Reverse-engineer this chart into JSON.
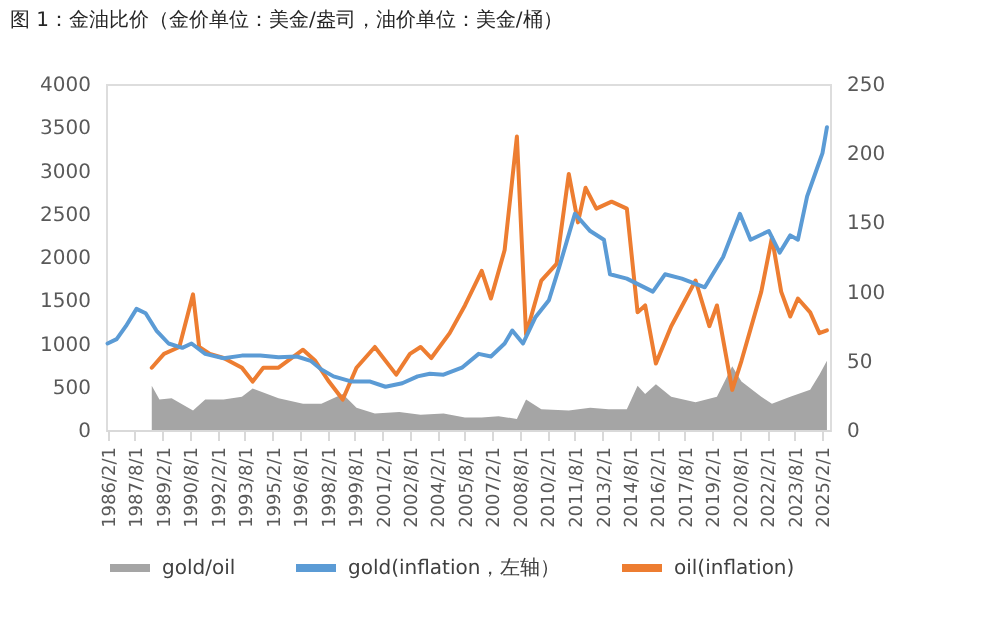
{
  "chart_data": {
    "type": "line",
    "title": "图 1：金油比价（金价单位：美金/盎司，油价单位：美金/桶）",
    "xlim": [
      "1986-01-01",
      "2025-07-01"
    ],
    "xticks": [
      {
        "value": "1986-02-01",
        "label": "1986/2/1"
      },
      {
        "value": "1987-08-01",
        "label": "1987/8/1"
      },
      {
        "value": "1989-02-01",
        "label": "1989/2/1"
      },
      {
        "value": "1990-08-01",
        "label": "1990/8/1"
      },
      {
        "value": "1992-02-01",
        "label": "1992/2/1"
      },
      {
        "value": "1993-08-01",
        "label": "1993/8/1"
      },
      {
        "value": "1995-02-01",
        "label": "1995/2/1"
      },
      {
        "value": "1996-08-01",
        "label": "1996/8/1"
      },
      {
        "value": "1998-02-01",
        "label": "1998/2/1"
      },
      {
        "value": "1999-08-01",
        "label": "1999/8/1"
      },
      {
        "value": "2001-02-01",
        "label": "2001/2/1"
      },
      {
        "value": "2002-08-01",
        "label": "2002/8/1"
      },
      {
        "value": "2004-02-01",
        "label": "2004/2/1"
      },
      {
        "value": "2005-08-01",
        "label": "2005/8/1"
      },
      {
        "value": "2007-02-01",
        "label": "2007/2/1"
      },
      {
        "value": "2008-08-01",
        "label": "2008/8/1"
      },
      {
        "value": "2010-02-01",
        "label": "2010/2/1"
      },
      {
        "value": "2011-08-01",
        "label": "2011/8/1"
      },
      {
        "value": "2013-02-01",
        "label": "2013/2/1"
      },
      {
        "value": "2014-08-01",
        "label": "2014/8/1"
      },
      {
        "value": "2016-02-01",
        "label": "2016/2/1"
      },
      {
        "value": "2017-08-01",
        "label": "2017/8/1"
      },
      {
        "value": "2019-02-01",
        "label": "2019/2/1"
      },
      {
        "value": "2020-08-01",
        "label": "2020/8/1"
      },
      {
        "value": "2022-02-01",
        "label": "2022/2/1"
      },
      {
        "value": "2023-08-01",
        "label": "2023/8/1"
      },
      {
        "value": "2025-02-01",
        "label": "2025/2/1"
      }
    ],
    "ylim": [
      0,
      4000
    ],
    "yticks": [
      0,
      500,
      1000,
      1500,
      2000,
      2500,
      3000,
      3500,
      4000
    ],
    "y2lim": [
      0,
      250
    ],
    "y2ticks": [
      0,
      50,
      100,
      150,
      200,
      250
    ],
    "grid": false,
    "legend": "bottom",
    "series": [
      {
        "name": "gold/oil",
        "type": "area",
        "axis": "y2",
        "color": "#a5a5a5",
        "x": [
          "1988-07",
          "1988-12",
          "1989-08",
          "1990-10",
          "1991-06",
          "1992-06",
          "1993-06",
          "1994-01",
          "1995-06",
          "1996-10",
          "1997-10",
          "1998-12",
          "1999-09",
          "2000-09",
          "2002-01",
          "2003-03",
          "2004-06",
          "2005-08",
          "2006-07",
          "2007-06",
          "2008-06",
          "2008-12",
          "2009-10",
          "2011-04",
          "2012-06",
          "2013-06",
          "2014-06",
          "2015-01",
          "2015-06",
          "2016-01",
          "2016-11",
          "2018-03",
          "2019-05",
          "2020-03",
          "2020-09",
          "2021-10",
          "2022-05",
          "2023-05",
          "2024-06",
          "2024-12",
          "2025-05"
        ],
        "values": [
          32,
          22,
          23,
          14,
          22,
          22,
          24,
          30,
          23,
          19,
          19,
          26,
          16,
          12,
          13,
          11,
          12,
          9,
          9,
          10,
          8,
          22,
          15,
          14,
          16,
          15,
          15,
          32,
          26,
          33,
          24,
          20,
          24,
          46,
          35,
          24,
          19,
          24,
          29,
          40,
          50
        ]
      },
      {
        "name": "gold(inflation，左轴）",
        "color": "#5b9bd5",
        "x": [
          "1986-02",
          "1986-08",
          "1987-02",
          "1987-09",
          "1988-03",
          "1988-10",
          "1989-06",
          "1990-03",
          "1990-09",
          "1991-06",
          "1992-06",
          "1993-06",
          "1994-06",
          "1995-06",
          "1996-06",
          "1997-03",
          "1997-10",
          "1998-06",
          "1999-06",
          "2000-06",
          "2001-04",
          "2002-03",
          "2003-01",
          "2003-09",
          "2004-06",
          "2005-06",
          "2006-05",
          "2007-01",
          "2007-10",
          "2008-03",
          "2008-10",
          "2009-06",
          "2010-03",
          "2010-10",
          "2011-08",
          "2012-06",
          "2013-03",
          "2013-07",
          "2014-06",
          "2015-11",
          "2016-07",
          "2017-06",
          "2018-09",
          "2019-09",
          "2020-08",
          "2021-03",
          "2022-03",
          "2022-10",
          "2023-05",
          "2023-10",
          "2024-04",
          "2024-10",
          "2025-02",
          "2025-05"
        ],
        "values": [
          1000,
          1050,
          1200,
          1400,
          1350,
          1150,
          1000,
          950,
          1000,
          880,
          830,
          860,
          860,
          840,
          850,
          800,
          700,
          620,
          560,
          560,
          500,
          540,
          620,
          650,
          640,
          720,
          880,
          850,
          1000,
          1150,
          1000,
          1300,
          1500,
          1900,
          2500,
          2300,
          2200,
          1800,
          1750,
          1600,
          1800,
          1750,
          1650,
          2000,
          2500,
          2200,
          2300,
          2050,
          2250,
          2200,
          2700,
          3000,
          3200,
          3500
        ]
      },
      {
        "name": "oil(inflation)",
        "axis": "y2",
        "color": "#ed7d31",
        "x": [
          "1988-07",
          "1989-03",
          "1990-01",
          "1990-10",
          "1991-02",
          "1991-09",
          "1992-06",
          "1993-06",
          "1994-01",
          "1994-08",
          "1995-06",
          "1996-10",
          "1997-06",
          "1998-03",
          "1998-12",
          "1999-09",
          "2000-09",
          "2001-11",
          "2002-08",
          "2003-03",
          "2003-10",
          "2004-10",
          "2005-08",
          "2006-07",
          "2007-01",
          "2007-10",
          "2008-06",
          "2008-12",
          "2009-10",
          "2010-08",
          "2011-04",
          "2011-10",
          "2012-03",
          "2012-10",
          "2013-08",
          "2014-06",
          "2015-01",
          "2015-06",
          "2016-01",
          "2016-11",
          "2018-03",
          "2018-12",
          "2019-05",
          "2020-03",
          "2020-09",
          "2021-10",
          "2022-05",
          "2022-11",
          "2023-05",
          "2023-10",
          "2024-06",
          "2024-12",
          "2025-05"
        ],
        "values": [
          45,
          55,
          60,
          98,
          60,
          55,
          52,
          45,
          35,
          45,
          45,
          58,
          50,
          35,
          22,
          45,
          60,
          40,
          55,
          60,
          52,
          70,
          90,
          115,
          95,
          130,
          212,
          69,
          108,
          120,
          185,
          150,
          175,
          160,
          165,
          160,
          85,
          90,
          48,
          75,
          108,
          75,
          90,
          29,
          50,
          100,
          139,
          100,
          82,
          95,
          85,
          70,
          72
        ]
      }
    ]
  }
}
